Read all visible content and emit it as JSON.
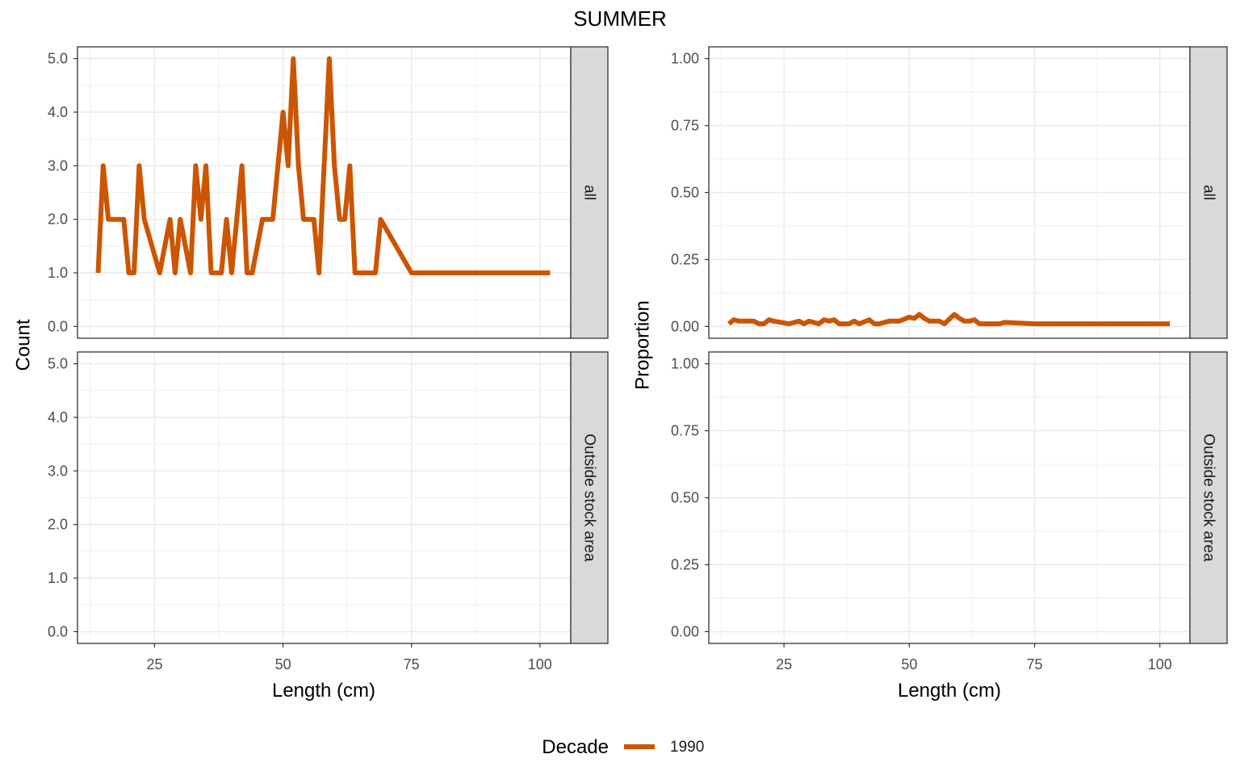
{
  "title": "SUMMER",
  "legend": {
    "title": "Decade",
    "entries": [
      {
        "label": "1990",
        "color": "#CC5500"
      }
    ]
  },
  "colors": {
    "line": "#CC5500",
    "grid": "#EBEBEB",
    "panel_border": "#333333",
    "strip_fill": "#D9D9D9"
  },
  "chart_data": [
    {
      "type": "line",
      "xlabel": "Length (cm)",
      "ylabel": "Count",
      "xlim": [
        10,
        106
      ],
      "x_ticks": [
        25,
        50,
        75,
        100
      ],
      "ylim": [
        -0.22,
        5.22
      ],
      "y_ticks": [
        0,
        1,
        2,
        3,
        4,
        5
      ],
      "y_tick_labels": [
        "0.0",
        "1.0",
        "2.0",
        "3.0",
        "4.0",
        "5.0"
      ],
      "grid": true,
      "facets": [
        {
          "strip": "all",
          "series": [
            {
              "name": "1990",
              "x": [
                14,
                15,
                16,
                17,
                19,
                20,
                21,
                22,
                23,
                26,
                28,
                29,
                30,
                32,
                33,
                34,
                35,
                36,
                37,
                38,
                39,
                40,
                42,
                43,
                44,
                46,
                47,
                48,
                50,
                51,
                52,
                53,
                54,
                56,
                57,
                59,
                60,
                61,
                62,
                63,
                64,
                65,
                66,
                68,
                69,
                75,
                102
              ],
              "y": [
                1,
                3,
                2,
                2,
                2,
                1,
                1,
                3,
                2,
                1,
                2,
                1,
                2,
                1,
                3,
                2,
                3,
                1,
                1,
                1,
                2,
                1,
                3,
                1,
                1,
                2,
                2,
                2,
                4,
                3,
                5,
                3,
                2,
                2,
                1,
                5,
                3,
                2,
                2,
                3,
                1,
                1,
                1,
                1,
                2,
                1,
                1
              ]
            }
          ]
        },
        {
          "strip": "Outside stock area",
          "series": []
        }
      ]
    },
    {
      "type": "line",
      "xlabel": "Length (cm)",
      "ylabel": "Proportion",
      "xlim": [
        10,
        106
      ],
      "x_ticks": [
        25,
        50,
        75,
        100
      ],
      "ylim": [
        -0.044,
        1.044
      ],
      "y_ticks": [
        0,
        0.25,
        0.5,
        0.75,
        1
      ],
      "y_tick_labels": [
        "0.00",
        "0.25",
        "0.50",
        "0.75",
        "1.00"
      ],
      "grid": true,
      "facets": [
        {
          "strip": "all",
          "series": [
            {
              "name": "1990",
              "x": [
                14,
                15,
                16,
                17,
                19,
                20,
                21,
                22,
                23,
                26,
                28,
                29,
                30,
                32,
                33,
                34,
                35,
                36,
                37,
                38,
                39,
                40,
                42,
                43,
                44,
                46,
                47,
                48,
                50,
                51,
                52,
                53,
                54,
                56,
                57,
                59,
                60,
                61,
                62,
                63,
                64,
                65,
                66,
                68,
                69,
                75,
                102
              ],
              "y": [
                0.01,
                0.025,
                0.02,
                0.02,
                0.02,
                0.01,
                0.01,
                0.025,
                0.02,
                0.01,
                0.02,
                0.01,
                0.02,
                0.01,
                0.025,
                0.02,
                0.025,
                0.01,
                0.01,
                0.01,
                0.02,
                0.01,
                0.025,
                0.01,
                0.01,
                0.02,
                0.02,
                0.02,
                0.035,
                0.03,
                0.045,
                0.03,
                0.02,
                0.02,
                0.01,
                0.045,
                0.03,
                0.02,
                0.02,
                0.025,
                0.01,
                0.01,
                0.01,
                0.01,
                0.015,
                0.01,
                0.01
              ]
            }
          ]
        },
        {
          "strip": "Outside stock area",
          "series": []
        }
      ]
    }
  ]
}
